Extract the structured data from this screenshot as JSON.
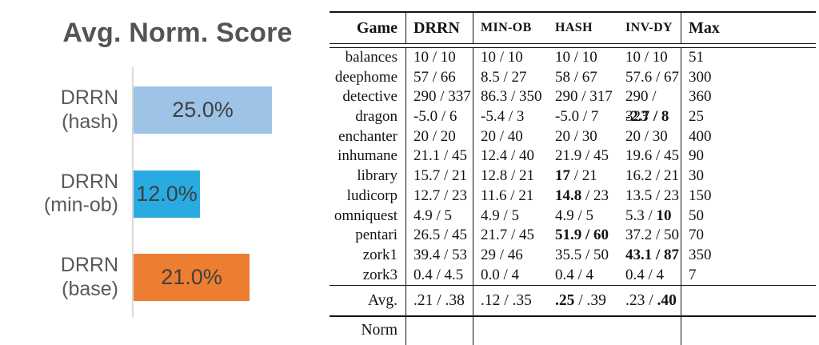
{
  "chart_data": [
    {
      "type": "bar",
      "orientation": "horizontal",
      "title": "Avg. Norm. Score",
      "categories": [
        "DRRN (hash)",
        "DRRN (min-ob)",
        "DRRN (base)"
      ],
      "category_lines": [
        [
          "DRRN",
          "(hash)"
        ],
        [
          "DRRN",
          "(min-ob)"
        ],
        [
          "DRRN",
          "(base)"
        ]
      ],
      "values": [
        25.0,
        12.0,
        21.0
      ],
      "value_labels": [
        "25.0%",
        "12.0%",
        "21.0%"
      ],
      "bar_colors": [
        "#9DC3E6",
        "#29ABE2",
        "#ED7D31"
      ],
      "title_color": "#545454",
      "label_color": "#595959",
      "value_color": "#3F3F3F",
      "axis_color": "#D9D9D9",
      "xlim": [
        0,
        30
      ],
      "grid": false,
      "legend": false
    },
    {
      "type": "table",
      "columns": [
        "Game",
        "DRRN",
        "MIN-OB",
        "HASH",
        "INV-DY",
        "Max"
      ],
      "rows": [
        {
          "game": "balances",
          "cells": [
            "10 / 10",
            "10 / 10",
            "10 / 10",
            "10 / 10"
          ],
          "max": "51"
        },
        {
          "game": "deephome",
          "cells": [
            "57 / 66",
            "8.5 / 27",
            "58 / 67",
            "57.6 / 67"
          ],
          "max": "300"
        },
        {
          "game": "detective",
          "cells": [
            "290 / 337",
            "86.3 / 350",
            "290 / 317",
            "290 / 323"
          ],
          "max": "360"
        },
        {
          "game": "dragon",
          "cells": [
            "-5.0 / 6",
            "-5.4 / 3",
            "-5.0 / 7",
            [
              {
                "t": "-2.7 / 8",
                "b": true
              }
            ]
          ],
          "max": "25"
        },
        {
          "game": "enchanter",
          "cells": [
            "20 / 20",
            "20 / 40",
            "20 / 30",
            "20 / 30"
          ],
          "max": "400"
        },
        {
          "game": "inhumane",
          "cells": [
            "21.1 / 45",
            "12.4 / 40",
            "21.9 / 45",
            "19.6 / 45"
          ],
          "max": "90"
        },
        {
          "game": "library",
          "cells": [
            "15.7 / 21",
            "12.8 / 21",
            [
              {
                "t": "17",
                "b": true
              },
              {
                "t": " / 21",
                "b": false
              }
            ],
            "16.2 / 21"
          ],
          "max": "30"
        },
        {
          "game": "ludicorp",
          "cells": [
            "12.7 / 23",
            "11.6 / 21",
            [
              {
                "t": "14.8",
                "b": true
              },
              {
                "t": " / 23",
                "b": false
              }
            ],
            "13.5 / 23"
          ],
          "max": "150"
        },
        {
          "game": "omniquest",
          "cells": [
            "4.9 / 5",
            "4.9 / 5",
            "4.9 / 5",
            [
              {
                "t": "5.3 / ",
                "b": false
              },
              {
                "t": "10",
                "b": true
              }
            ]
          ],
          "max": "50"
        },
        {
          "game": "pentari",
          "cells": [
            "26.5 / 45",
            "21.7 / 45",
            [
              {
                "t": "51.9 / 60",
                "b": true
              }
            ],
            "37.2 / 50"
          ],
          "max": "70"
        },
        {
          "game": "zork1",
          "cells": [
            "39.4 / 53",
            "29 / 46",
            "35.5 / 50",
            [
              {
                "t": "43.1 / 87",
                "b": true
              }
            ]
          ],
          "max": "350"
        },
        {
          "game": "zork3",
          "cells": [
            "0.4 / 4.5",
            "0.0 / 4",
            "0.4 / 4",
            "0.4 / 4"
          ],
          "max": "7"
        }
      ],
      "footer": {
        "label": "Avg. Norm",
        "cells": [
          ".21 / .38",
          ".12 / .35",
          [
            {
              "t": ".25",
              "b": true
            },
            {
              "t": " / .39",
              "b": false
            }
          ],
          [
            {
              "t": ".23 / ",
              "b": false
            },
            {
              "t": ".40",
              "b": true
            }
          ]
        ],
        "max": ""
      }
    }
  ]
}
